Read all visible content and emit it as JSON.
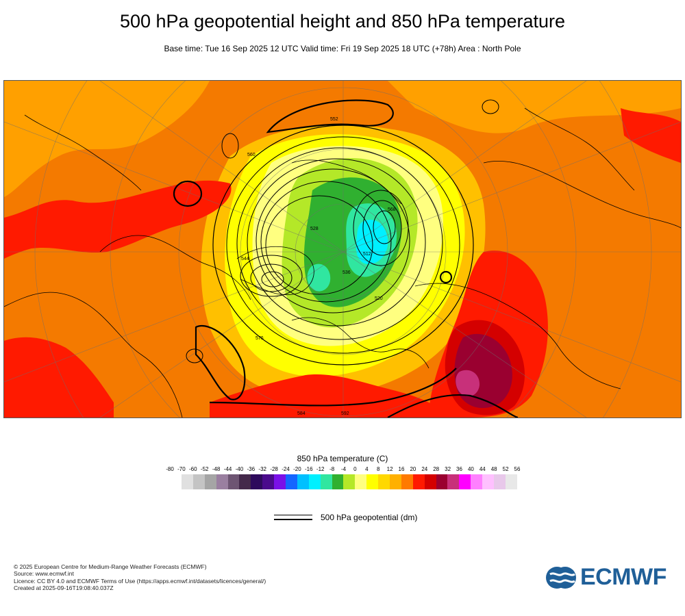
{
  "title": "500 hPa geopotential height and 850 hPa temperature",
  "subtitle": "Base time: Tue 16 Sep 2025 12 UTC Valid time: Fri 19 Sep 2025 18 UTC (+78h) Area : North Pole",
  "legend": {
    "temperature_title": "850 hPa temperature (C)",
    "ticks": [
      "-80",
      "-70",
      "-60",
      "-52",
      "-48",
      "-44",
      "-40",
      "-36",
      "-32",
      "-28",
      "-24",
      "-20",
      "-16",
      "-12",
      "-8",
      "-4",
      "0",
      "4",
      "8",
      "12",
      "16",
      "20",
      "24",
      "28",
      "32",
      "36",
      "40",
      "44",
      "48",
      "52",
      "56"
    ],
    "colors": [
      "#e0e0e0",
      "#c4c4c4",
      "#a5a5a5",
      "#9a7fa0",
      "#6e5573",
      "#44294b",
      "#2e0a5c",
      "#4a0a8c",
      "#7a10e8",
      "#1466ff",
      "#00c0ff",
      "#00f0ff",
      "#30e6a0",
      "#30b030",
      "#b4e828",
      "#ffff80",
      "#ffff00",
      "#ffd800",
      "#ffb000",
      "#ff7a00",
      "#ff1a00",
      "#d40000",
      "#9a0030",
      "#c8307a",
      "#ff00ff",
      "#ff80ff",
      "#ffc0ff",
      "#e8c8ea",
      "#e8e8e8"
    ],
    "geopotential_label": "500 hPa geopotential (dm)"
  },
  "map": {
    "contour_labels": [
      "552",
      "560",
      "568",
      "576",
      "584",
      "592",
      "528",
      "536",
      "544",
      "520",
      "512"
    ]
  },
  "credits": [
    "© 2025 European Centre for Medium-Range Weather Forecasts (ECMWF)",
    "Source: www.ecmwf.int",
    "Licence: CC BY 4.0 and ECMWF Terms of Use (https://apps.ecmwf.int/datasets/licences/general/)",
    "Created at 2025-09-16T19:08:40.037Z"
  ],
  "logo_text": "ECMWF"
}
